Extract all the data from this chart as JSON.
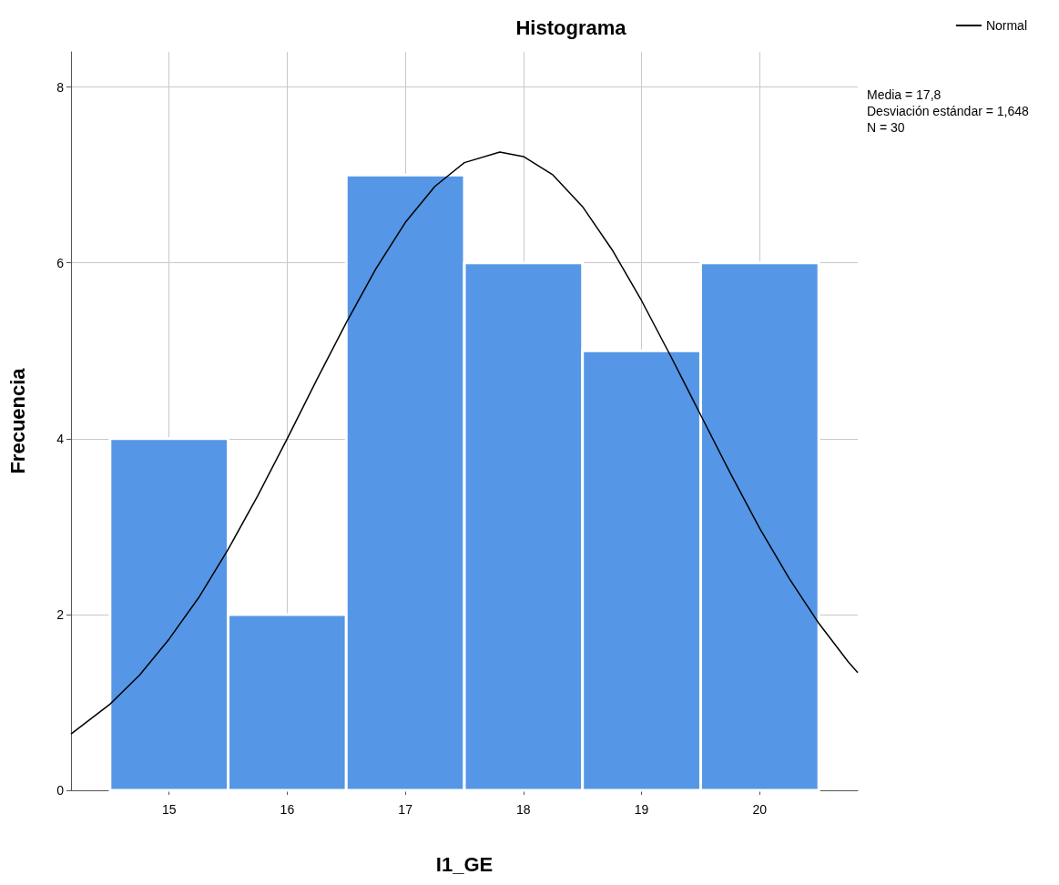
{
  "chart_data": {
    "type": "histogram",
    "title": "Histograma",
    "xlabel": "I1_GE",
    "ylabel": "Frecuencia",
    "bins": [
      14.5,
      15.5,
      16.5,
      17.5,
      18.5,
      19.5,
      20.5
    ],
    "values": [
      4,
      2,
      7,
      6,
      5,
      6
    ],
    "color": "#5596e6",
    "xlim": [
      14.17,
      20.83
    ],
    "xticks": [
      15,
      16,
      17,
      18,
      19,
      20
    ],
    "ylim": [
      0,
      8.4
    ],
    "yticks": [
      0,
      2,
      4,
      6,
      8
    ],
    "grid": true,
    "legend": "top right",
    "annotations": [
      "Media = 17,8",
      "Desviación estándar = 1,648",
      "N = 30"
    ],
    "series": [
      {
        "type": "line",
        "name": "Normal",
        "color": "#000000",
        "x": [
          14.17,
          14.5,
          14.75,
          15,
          15.25,
          15.5,
          15.75,
          16,
          16.25,
          16.5,
          16.75,
          17,
          17.25,
          17.5,
          17.8,
          18,
          18.25,
          18.5,
          18.75,
          19,
          19.25,
          19.5,
          19.75,
          20,
          20.25,
          20.5,
          20.75,
          20.83
        ],
        "values": [
          0.64,
          0.98,
          1.31,
          1.72,
          2.19,
          2.74,
          3.35,
          4.0,
          4.67,
          5.32,
          5.93,
          6.46,
          6.87,
          7.14,
          7.26,
          7.21,
          7.0,
          6.64,
          6.15,
          5.57,
          4.93,
          4.27,
          3.61,
          2.98,
          2.41,
          1.9,
          1.46,
          1.34
        ]
      }
    ]
  }
}
